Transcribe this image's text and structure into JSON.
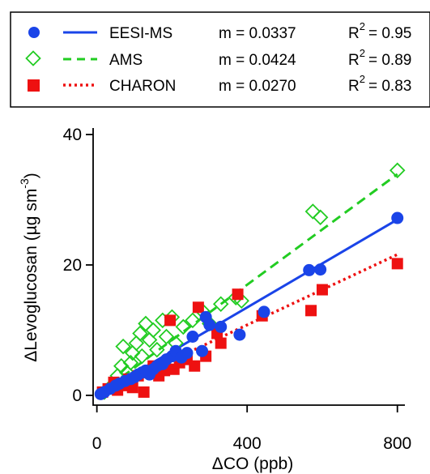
{
  "chart_data": {
    "type": "scatter",
    "xlabel": "ΔCO (ppb)",
    "ylabel_main": "ΔLevoglucosan (µg sm",
    "ylabel_sup": "-3",
    "ylabel_close": ")",
    "xlim": [
      -10,
      820
    ],
    "ylim": [
      -1.5,
      41
    ],
    "x_ticks": [
      0,
      400,
      800
    ],
    "y_ticks": [
      0,
      20,
      40
    ],
    "legend_position": "top",
    "series": [
      {
        "name": "EESI-MS",
        "marker": "circle",
        "line_style": "solid",
        "color": "#1a44e8",
        "slope_label": "m = 0.0337",
        "r2_prefix": "R",
        "r2_sup": "2",
        "r2_value": "= 0.95",
        "slope": 0.0337,
        "fit_x": [
          0,
          800
        ],
        "points": [
          [
            10,
            0.2
          ],
          [
            20,
            0.5
          ],
          [
            35,
            1.0
          ],
          [
            50,
            1.5
          ],
          [
            60,
            1.8
          ],
          [
            75,
            2.2
          ],
          [
            90,
            2.5
          ],
          [
            100,
            2.8
          ],
          [
            110,
            3.2
          ],
          [
            120,
            3.5
          ],
          [
            130,
            3.8
          ],
          [
            140,
            3.2
          ],
          [
            150,
            4.0
          ],
          [
            160,
            4.5
          ],
          [
            175,
            4.8
          ],
          [
            185,
            5.5
          ],
          [
            200,
            6.0
          ],
          [
            210,
            6.8
          ],
          [
            225,
            5.8
          ],
          [
            240,
            6.5
          ],
          [
            255,
            9.0
          ],
          [
            280,
            6.8
          ],
          [
            290,
            12.0
          ],
          [
            300,
            10.8
          ],
          [
            330,
            10.5
          ],
          [
            380,
            9.3
          ],
          [
            445,
            12.8
          ],
          [
            565,
            19.2
          ],
          [
            595,
            19.3
          ],
          [
            800,
            27.2
          ]
        ]
      },
      {
        "name": "AMS",
        "marker": "diamond-open",
        "line_style": "dashed",
        "color": "#22cc22",
        "slope_label": "m = 0.0424",
        "r2_prefix": "R",
        "r2_sup": "2",
        "r2_value": "= 0.89",
        "slope": 0.0424,
        "fit_x": [
          0,
          800
        ],
        "points": [
          [
            20,
            0.5
          ],
          [
            40,
            1.5
          ],
          [
            55,
            3.0
          ],
          [
            65,
            4.5
          ],
          [
            70,
            7.5
          ],
          [
            80,
            3.5
          ],
          [
            90,
            5.0
          ],
          [
            95,
            6.5
          ],
          [
            105,
            8.0
          ],
          [
            115,
            9.5
          ],
          [
            120,
            6.0
          ],
          [
            130,
            11.0
          ],
          [
            140,
            8.5
          ],
          [
            150,
            10.0
          ],
          [
            160,
            7.0
          ],
          [
            175,
            11.5
          ],
          [
            185,
            9.0
          ],
          [
            200,
            12.0
          ],
          [
            210,
            8.0
          ],
          [
            230,
            10.5
          ],
          [
            255,
            11.5
          ],
          [
            280,
            13.0
          ],
          [
            300,
            11.0
          ],
          [
            330,
            14.0
          ],
          [
            370,
            15.0
          ],
          [
            385,
            14.5
          ],
          [
            575,
            28.2
          ],
          [
            595,
            27.3
          ],
          [
            800,
            34.5
          ]
        ]
      },
      {
        "name": "CHARON",
        "marker": "square",
        "line_style": "dotted",
        "color": "#ee1111",
        "slope_label": "m = 0.0270",
        "r2_prefix": "R",
        "r2_sup": "2",
        "r2_value": "= 0.83",
        "slope": 0.027,
        "fit_x": [
          0,
          800
        ],
        "points": [
          [
            15,
            0.5
          ],
          [
            30,
            1.0
          ],
          [
            45,
            2.0
          ],
          [
            55,
            0.8
          ],
          [
            70,
            1.5
          ],
          [
            85,
            2.5
          ],
          [
            95,
            1.2
          ],
          [
            110,
            3.0
          ],
          [
            125,
            0.5
          ],
          [
            135,
            3.5
          ],
          [
            150,
            4.5
          ],
          [
            165,
            3.0
          ],
          [
            180,
            3.8
          ],
          [
            195,
            11.5
          ],
          [
            205,
            4.0
          ],
          [
            220,
            5.0
          ],
          [
            240,
            5.5
          ],
          [
            260,
            4.5
          ],
          [
            270,
            13.5
          ],
          [
            290,
            6.0
          ],
          [
            320,
            9.5
          ],
          [
            330,
            8.0
          ],
          [
            375,
            15.5
          ],
          [
            440,
            12.2
          ],
          [
            570,
            13.0
          ],
          [
            600,
            16.2
          ],
          [
            800,
            20.2
          ]
        ]
      }
    ]
  }
}
